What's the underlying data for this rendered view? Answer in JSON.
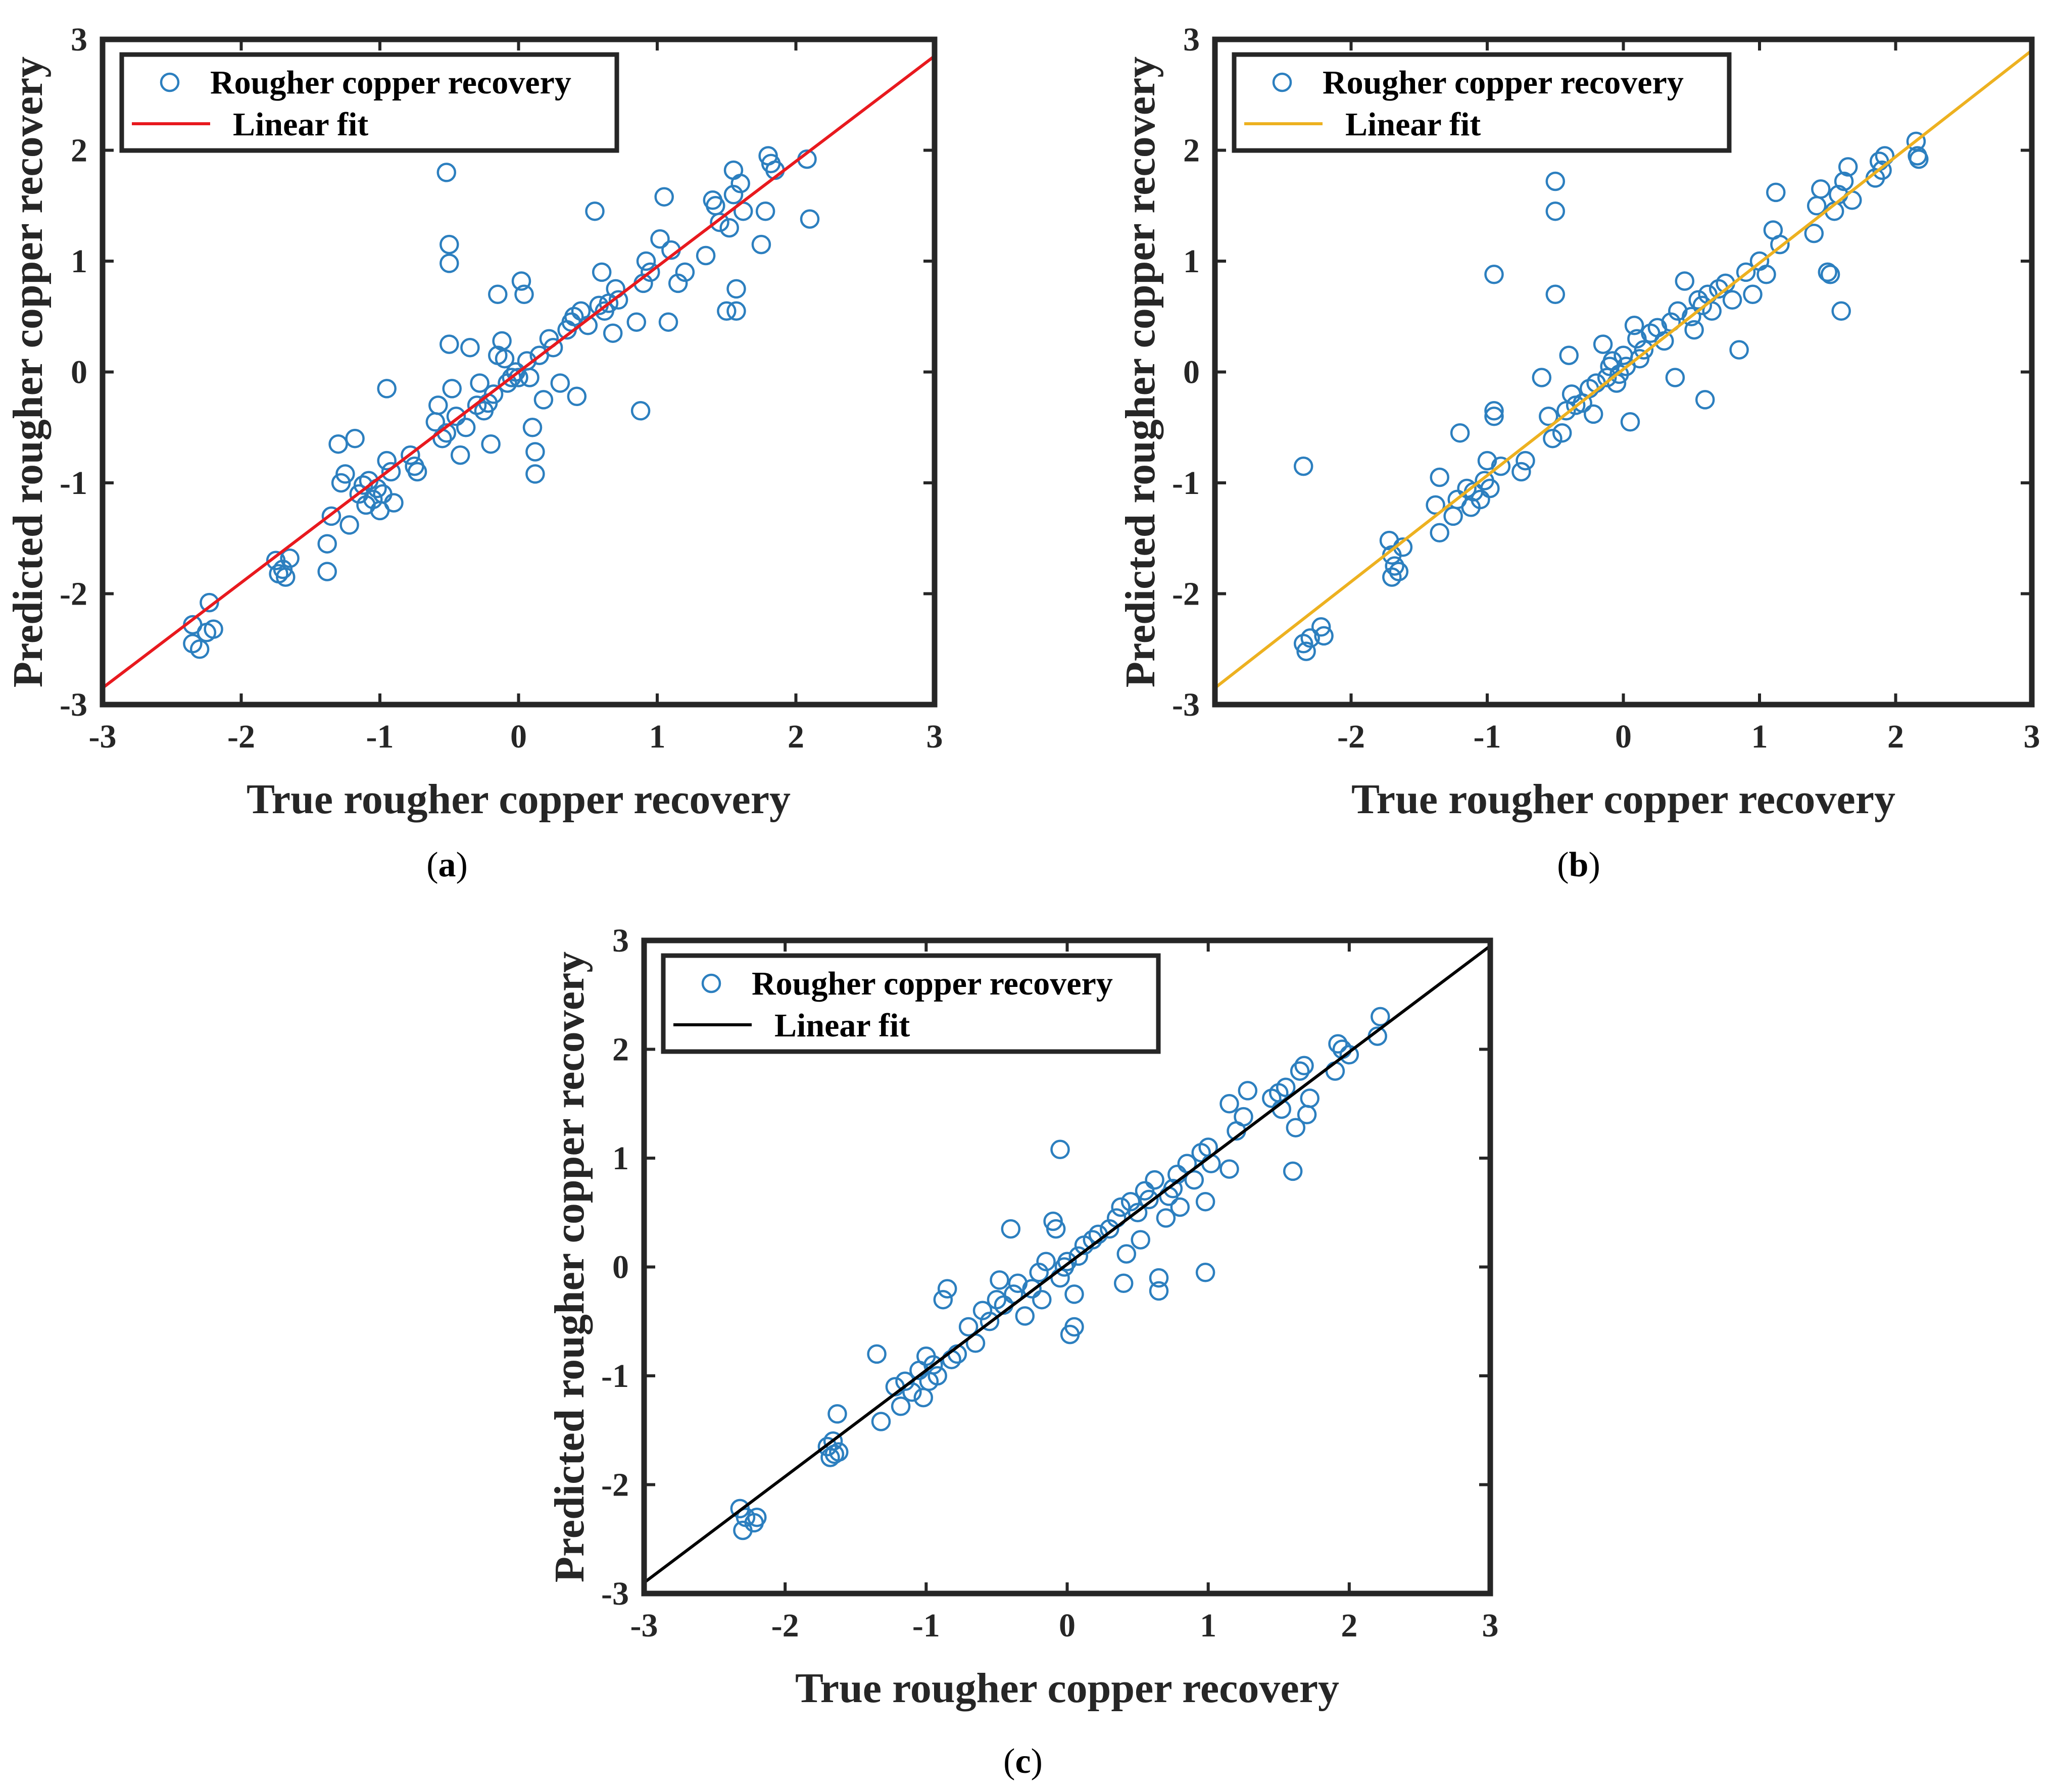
{
  "colors": {
    "marker": "#2C7FBF",
    "axis": "#262626"
  },
  "chart_data": [
    {
      "type": "scatter",
      "panel_label": "a",
      "xlabel": "True rougher copper recovery",
      "ylabel": "Predicted rougher copper recovery",
      "xlim": [
        -3,
        3
      ],
      "ylim": [
        -3,
        3
      ],
      "xticks": [
        -3,
        -2,
        -1,
        0,
        1,
        2,
        3
      ],
      "yticks": [
        -3,
        -2,
        -1,
        0,
        1,
        2,
        3
      ],
      "legend": {
        "position": "top-left",
        "entries": [
          "Rougher copper recovery",
          "Linear fit"
        ]
      },
      "fit_line": {
        "color": "#E8191E",
        "x": [
          -3,
          3
        ],
        "y": [
          -2.85,
          2.85
        ]
      },
      "points": [
        [
          -2.35,
          -2.45
        ],
        [
          -2.35,
          -2.28
        ],
        [
          -2.3,
          -2.5
        ],
        [
          -2.25,
          -2.35
        ],
        [
          -2.23,
          -2.08
        ],
        [
          -2.2,
          -2.32
        ],
        [
          -1.75,
          -1.7
        ],
        [
          -1.73,
          -1.82
        ],
        [
          -1.7,
          -1.78
        ],
        [
          -1.68,
          -1.85
        ],
        [
          -1.65,
          -1.68
        ],
        [
          -1.38,
          -1.55
        ],
        [
          -1.38,
          -1.8
        ],
        [
          -1.35,
          -1.3
        ],
        [
          -1.3,
          -0.65
        ],
        [
          -1.28,
          -1.0
        ],
        [
          -1.25,
          -0.92
        ],
        [
          -1.22,
          -1.38
        ],
        [
          -1.18,
          -0.6
        ],
        [
          -1.15,
          -1.1
        ],
        [
          -1.12,
          -1.02
        ],
        [
          -1.1,
          -1.2
        ],
        [
          -1.08,
          -0.98
        ],
        [
          -1.05,
          -1.15
        ],
        [
          -1.02,
          -1.05
        ],
        [
          -1.0,
          -1.25
        ],
        [
          -0.98,
          -1.1
        ],
        [
          -0.95,
          -0.8
        ],
        [
          -0.95,
          -0.15
        ],
        [
          -0.92,
          -0.9
        ],
        [
          -0.9,
          -1.18
        ],
        [
          -0.78,
          -0.75
        ],
        [
          -0.75,
          -0.85
        ],
        [
          -0.73,
          -0.9
        ],
        [
          -0.6,
          -0.45
        ],
        [
          -0.58,
          -0.3
        ],
        [
          -0.55,
          -0.6
        ],
        [
          -0.52,
          -0.55
        ],
        [
          -0.52,
          1.8
        ],
        [
          -0.5,
          1.15
        ],
        [
          -0.5,
          0.98
        ],
        [
          -0.5,
          0.25
        ],
        [
          -0.48,
          -0.15
        ],
        [
          -0.45,
          -0.4
        ],
        [
          -0.42,
          -0.75
        ],
        [
          -0.38,
          -0.5
        ],
        [
          -0.35,
          0.22
        ],
        [
          -0.3,
          -0.3
        ],
        [
          -0.28,
          -0.1
        ],
        [
          -0.25,
          -0.35
        ],
        [
          -0.22,
          -0.28
        ],
        [
          -0.2,
          -0.65
        ],
        [
          -0.18,
          -0.2
        ],
        [
          -0.15,
          0.15
        ],
        [
          -0.12,
          0.28
        ],
        [
          -0.1,
          0.12
        ],
        [
          -0.08,
          -0.1
        ],
        [
          -0.05,
          -0.05
        ],
        [
          -0.15,
          0.7
        ],
        [
          -0.02,
          0.0
        ],
        [
          0.0,
          -0.05
        ],
        [
          0.02,
          0.82
        ],
        [
          0.04,
          0.7
        ],
        [
          0.06,
          0.1
        ],
        [
          0.08,
          -0.05
        ],
        [
          0.1,
          -0.5
        ],
        [
          0.12,
          -0.72
        ],
        [
          0.12,
          -0.92
        ],
        [
          0.15,
          0.15
        ],
        [
          0.18,
          -0.25
        ],
        [
          0.22,
          0.3
        ],
        [
          0.25,
          0.22
        ],
        [
          0.3,
          -0.1
        ],
        [
          0.35,
          0.38
        ],
        [
          0.38,
          0.45
        ],
        [
          0.4,
          0.5
        ],
        [
          0.42,
          -0.22
        ],
        [
          0.45,
          0.55
        ],
        [
          0.5,
          0.42
        ],
        [
          0.55,
          1.45
        ],
        [
          0.58,
          0.6
        ],
        [
          0.6,
          0.9
        ],
        [
          0.62,
          0.55
        ],
        [
          0.65,
          0.62
        ],
        [
          0.68,
          0.35
        ],
        [
          0.7,
          0.75
        ],
        [
          0.72,
          0.65
        ],
        [
          0.85,
          0.45
        ],
        [
          0.88,
          -0.35
        ],
        [
          0.9,
          0.8
        ],
        [
          0.92,
          1.0
        ],
        [
          0.95,
          0.9
        ],
        [
          1.02,
          1.2
        ],
        [
          1.05,
          1.58
        ],
        [
          1.08,
          0.45
        ],
        [
          1.1,
          1.1
        ],
        [
          1.15,
          0.8
        ],
        [
          1.2,
          0.9
        ],
        [
          1.35,
          1.05
        ],
        [
          1.4,
          1.55
        ],
        [
          1.42,
          1.5
        ],
        [
          1.45,
          1.35
        ],
        [
          1.5,
          0.55
        ],
        [
          1.52,
          1.3
        ],
        [
          1.55,
          1.82
        ],
        [
          1.55,
          1.6
        ],
        [
          1.57,
          0.75
        ],
        [
          1.57,
          0.55
        ],
        [
          1.6,
          1.7
        ],
        [
          1.62,
          1.45
        ],
        [
          1.75,
          1.15
        ],
        [
          1.78,
          1.45
        ],
        [
          1.8,
          1.95
        ],
        [
          1.82,
          1.88
        ],
        [
          1.85,
          1.82
        ],
        [
          2.08,
          1.92
        ],
        [
          2.1,
          1.38
        ]
      ]
    },
    {
      "type": "scatter",
      "panel_label": "b",
      "xlabel": "True rougher copper recovery",
      "ylabel": "Predicted rougher copper recovery",
      "xlim": [
        -3,
        3
      ],
      "ylim": [
        -3,
        3
      ],
      "xticks": [
        -2,
        -1,
        0,
        1,
        2,
        3
      ],
      "yticks": [
        -3,
        -2,
        -1,
        0,
        1,
        2,
        3
      ],
      "legend": {
        "position": "top-left",
        "entries": [
          "Rougher copper recovery",
          "Linear fit"
        ]
      },
      "fit_line": {
        "color": "#EDB120",
        "x": [
          -3,
          3
        ],
        "y": [
          -2.85,
          2.9
        ]
      },
      "points": [
        [
          -2.35,
          -0.85
        ],
        [
          -2.35,
          -2.45
        ],
        [
          -2.33,
          -2.52
        ],
        [
          -2.3,
          -2.4
        ],
        [
          -2.22,
          -2.3
        ],
        [
          -2.2,
          -2.38
        ],
        [
          -1.72,
          -1.52
        ],
        [
          -1.7,
          -1.65
        ],
        [
          -1.7,
          -1.85
        ],
        [
          -1.68,
          -1.75
        ],
        [
          -1.65,
          -1.8
        ],
        [
          -1.62,
          -1.58
        ],
        [
          -1.38,
          -1.2
        ],
        [
          -1.35,
          -0.95
        ],
        [
          -1.35,
          -1.45
        ],
        [
          -1.25,
          -1.3
        ],
        [
          -1.22,
          -1.15
        ],
        [
          -1.2,
          -0.55
        ],
        [
          -1.15,
          -1.05
        ],
        [
          -1.12,
          -1.22
        ],
        [
          -1.1,
          -1.08
        ],
        [
          -1.05,
          -1.15
        ],
        [
          -1.02,
          -0.98
        ],
        [
          -1.0,
          -0.8
        ],
        [
          -0.98,
          -1.05
        ],
        [
          -0.95,
          -0.35
        ],
        [
          -0.95,
          -0.4
        ],
        [
          -0.95,
          0.88
        ],
        [
          -0.9,
          -0.85
        ],
        [
          -0.75,
          -0.9
        ],
        [
          -0.72,
          -0.8
        ],
        [
          -0.6,
          -0.05
        ],
        [
          -0.55,
          -0.4
        ],
        [
          -0.52,
          -0.6
        ],
        [
          -0.5,
          1.72
        ],
        [
          -0.5,
          1.45
        ],
        [
          -0.5,
          0.7
        ],
        [
          -0.45,
          -0.55
        ],
        [
          -0.42,
          -0.35
        ],
        [
          -0.4,
          0.15
        ],
        [
          -0.38,
          -0.2
        ],
        [
          -0.35,
          -0.3
        ],
        [
          -0.3,
          -0.28
        ],
        [
          -0.25,
          -0.15
        ],
        [
          -0.22,
          -0.38
        ],
        [
          -0.2,
          -0.1
        ],
        [
          -0.15,
          0.25
        ],
        [
          -0.12,
          -0.05
        ],
        [
          -0.1,
          0.05
        ],
        [
          -0.08,
          0.1
        ],
        [
          -0.05,
          -0.1
        ],
        [
          -0.03,
          -0.02
        ],
        [
          0.0,
          0.15
        ],
        [
          0.02,
          0.05
        ],
        [
          0.05,
          -0.45
        ],
        [
          0.08,
          0.42
        ],
        [
          0.1,
          0.3
        ],
        [
          0.12,
          0.12
        ],
        [
          0.15,
          0.2
        ],
        [
          0.2,
          0.35
        ],
        [
          0.25,
          0.4
        ],
        [
          0.3,
          0.28
        ],
        [
          0.35,
          0.45
        ],
        [
          0.38,
          -0.05
        ],
        [
          0.4,
          0.55
        ],
        [
          0.45,
          0.82
        ],
        [
          0.5,
          0.5
        ],
        [
          0.52,
          0.38
        ],
        [
          0.55,
          0.65
        ],
        [
          0.58,
          0.6
        ],
        [
          0.6,
          -0.25
        ],
        [
          0.62,
          0.7
        ],
        [
          0.65,
          0.55
        ],
        [
          0.7,
          0.75
        ],
        [
          0.75,
          0.8
        ],
        [
          0.8,
          0.65
        ],
        [
          0.85,
          0.2
        ],
        [
          0.9,
          0.9
        ],
        [
          0.95,
          0.7
        ],
        [
          1.0,
          1.0
        ],
        [
          1.05,
          0.88
        ],
        [
          1.1,
          1.28
        ],
        [
          1.12,
          1.62
        ],
        [
          1.15,
          1.15
        ],
        [
          1.4,
          1.25
        ],
        [
          1.42,
          1.5
        ],
        [
          1.45,
          1.65
        ],
        [
          1.5,
          0.9
        ],
        [
          1.52,
          0.88
        ],
        [
          1.55,
          1.45
        ],
        [
          1.58,
          1.6
        ],
        [
          1.6,
          0.55
        ],
        [
          1.62,
          1.72
        ],
        [
          1.65,
          1.85
        ],
        [
          1.68,
          1.55
        ],
        [
          1.85,
          1.75
        ],
        [
          1.88,
          1.9
        ],
        [
          1.9,
          1.82
        ],
        [
          1.92,
          1.95
        ],
        [
          2.15,
          2.08
        ],
        [
          2.16,
          1.95
        ],
        [
          2.17,
          1.92
        ]
      ]
    },
    {
      "type": "scatter",
      "panel_label": "c",
      "xlabel": "True rougher copper recovery",
      "ylabel": "Predicted rougher copper recovery",
      "xlim": [
        -3,
        3
      ],
      "ylim": [
        -3,
        3
      ],
      "xticks": [
        -3,
        -2,
        -1,
        0,
        1,
        2,
        3
      ],
      "yticks": [
        -3,
        -2,
        -1,
        0,
        1,
        2,
        3
      ],
      "legend": {
        "position": "top-left",
        "entries": [
          "Rougher copper recovery",
          "Linear fit"
        ]
      },
      "fit_line": {
        "color": "#000000",
        "x": [
          -3,
          3
        ],
        "y": [
          -2.9,
          2.95
        ]
      },
      "points": [
        [
          -2.32,
          -2.22
        ],
        [
          -2.3,
          -2.42
        ],
        [
          -2.28,
          -2.3
        ],
        [
          -2.22,
          -2.35
        ],
        [
          -2.2,
          -2.3
        ],
        [
          -1.7,
          -1.65
        ],
        [
          -1.68,
          -1.75
        ],
        [
          -1.66,
          -1.6
        ],
        [
          -1.65,
          -1.72
        ],
        [
          -1.63,
          -1.35
        ],
        [
          -1.62,
          -1.7
        ],
        [
          -1.35,
          -0.8
        ],
        [
          -1.32,
          -1.42
        ],
        [
          -1.22,
          -1.1
        ],
        [
          -1.18,
          -1.28
        ],
        [
          -1.15,
          -1.05
        ],
        [
          -1.1,
          -1.15
        ],
        [
          -1.05,
          -0.95
        ],
        [
          -1.02,
          -1.2
        ],
        [
          -1.0,
          -0.82
        ],
        [
          -0.98,
          -1.05
        ],
        [
          -0.95,
          -0.9
        ],
        [
          -0.92,
          -1.0
        ],
        [
          -0.88,
          -0.3
        ],
        [
          -0.85,
          -0.2
        ],
        [
          -0.82,
          -0.85
        ],
        [
          -0.78,
          -0.8
        ],
        [
          -0.7,
          -0.55
        ],
        [
          -0.65,
          -0.7
        ],
        [
          -0.6,
          -0.4
        ],
        [
          -0.55,
          -0.5
        ],
        [
          -0.5,
          -0.3
        ],
        [
          -0.48,
          -0.12
        ],
        [
          -0.45,
          -0.35
        ],
        [
          -0.4,
          0.35
        ],
        [
          -0.38,
          -0.25
        ],
        [
          -0.35,
          -0.15
        ],
        [
          -0.3,
          -0.45
        ],
        [
          -0.25,
          -0.2
        ],
        [
          -0.2,
          -0.05
        ],
        [
          -0.18,
          -0.3
        ],
        [
          -0.15,
          0.05
        ],
        [
          -0.1,
          0.42
        ],
        [
          -0.08,
          0.35
        ],
        [
          -0.05,
          1.08
        ],
        [
          -0.05,
          -0.1
        ],
        [
          -0.02,
          0.0
        ],
        [
          0.0,
          0.05
        ],
        [
          0.02,
          -0.62
        ],
        [
          0.05,
          -0.55
        ],
        [
          0.05,
          -0.25
        ],
        [
          0.08,
          0.1
        ],
        [
          0.12,
          0.2
        ],
        [
          0.18,
          0.25
        ],
        [
          0.22,
          0.3
        ],
        [
          0.3,
          0.35
        ],
        [
          0.35,
          0.45
        ],
        [
          0.38,
          0.55
        ],
        [
          0.4,
          -0.15
        ],
        [
          0.42,
          0.12
        ],
        [
          0.45,
          0.6
        ],
        [
          0.5,
          0.5
        ],
        [
          0.52,
          0.25
        ],
        [
          0.55,
          0.7
        ],
        [
          0.58,
          0.62
        ],
        [
          0.62,
          0.8
        ],
        [
          0.65,
          -0.1
        ],
        [
          0.65,
          -0.22
        ],
        [
          0.7,
          0.45
        ],
        [
          0.72,
          0.65
        ],
        [
          0.75,
          0.72
        ],
        [
          0.78,
          0.85
        ],
        [
          0.8,
          0.55
        ],
        [
          0.85,
          0.95
        ],
        [
          0.9,
          0.8
        ],
        [
          0.95,
          1.05
        ],
        [
          0.98,
          0.6
        ],
        [
          0.98,
          -0.05
        ],
        [
          1.0,
          1.1
        ],
        [
          1.02,
          0.95
        ],
        [
          1.15,
          1.5
        ],
        [
          1.15,
          0.9
        ],
        [
          1.2,
          1.25
        ],
        [
          1.25,
          1.38
        ],
        [
          1.28,
          1.62
        ],
        [
          1.45,
          1.55
        ],
        [
          1.5,
          1.6
        ],
        [
          1.52,
          1.45
        ],
        [
          1.55,
          1.65
        ],
        [
          1.6,
          0.88
        ],
        [
          1.62,
          1.28
        ],
        [
          1.65,
          1.8
        ],
        [
          1.68,
          1.85
        ],
        [
          1.7,
          1.4
        ],
        [
          1.72,
          1.55
        ],
        [
          1.9,
          1.8
        ],
        [
          1.92,
          2.05
        ],
        [
          1.95,
          2.0
        ],
        [
          2.0,
          1.95
        ],
        [
          2.22,
          2.3
        ],
        [
          2.2,
          2.12
        ]
      ]
    }
  ]
}
